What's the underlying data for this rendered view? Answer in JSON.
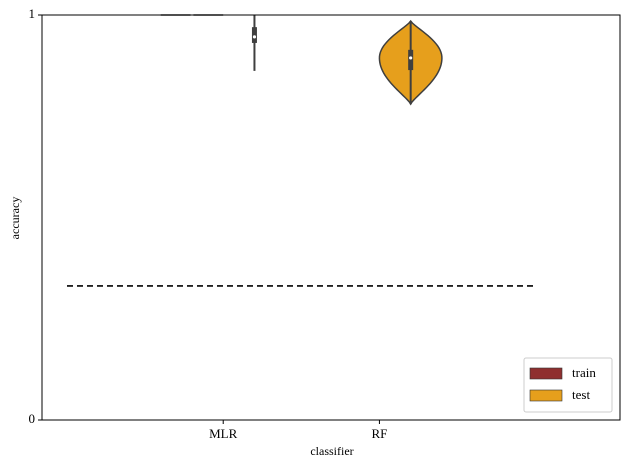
{
  "chart_data": {
    "type": "violin",
    "x_label": "classifier",
    "y_label": "accuracy",
    "categories": [
      null,
      "MLR",
      "RF",
      null
    ],
    "ylim": [
      0,
      1
    ],
    "yticks": [
      0,
      1
    ],
    "reference_line": 0.331,
    "legend": "lower right",
    "series": [
      {
        "name": "train",
        "color": "#8f2f2f",
        "min": [
          null,
          1.0,
          null,
          null
        ],
        "q1": [
          null,
          1.0,
          null,
          null
        ],
        "median": [
          null,
          1.0,
          null,
          null
        ],
        "q3": [
          null,
          1.0,
          null,
          null
        ],
        "max": [
          null,
          1.0,
          null,
          null
        ],
        "widths": [
          null,
          1,
          null,
          null
        ]
      },
      {
        "name": "test",
        "color": "#e69f1c",
        "min": [
          null,
          0.862,
          0.78,
          null
        ],
        "q1": [
          null,
          0.931,
          0.864,
          null
        ],
        "median": [
          null,
          0.946,
          0.894,
          null
        ],
        "q3": [
          null,
          0.97,
          0.914,
          null
        ],
        "max": [
          null,
          1.0,
          0.985,
          null
        ],
        "widths": [
          null,
          0,
          1,
          null
        ]
      }
    ]
  }
}
